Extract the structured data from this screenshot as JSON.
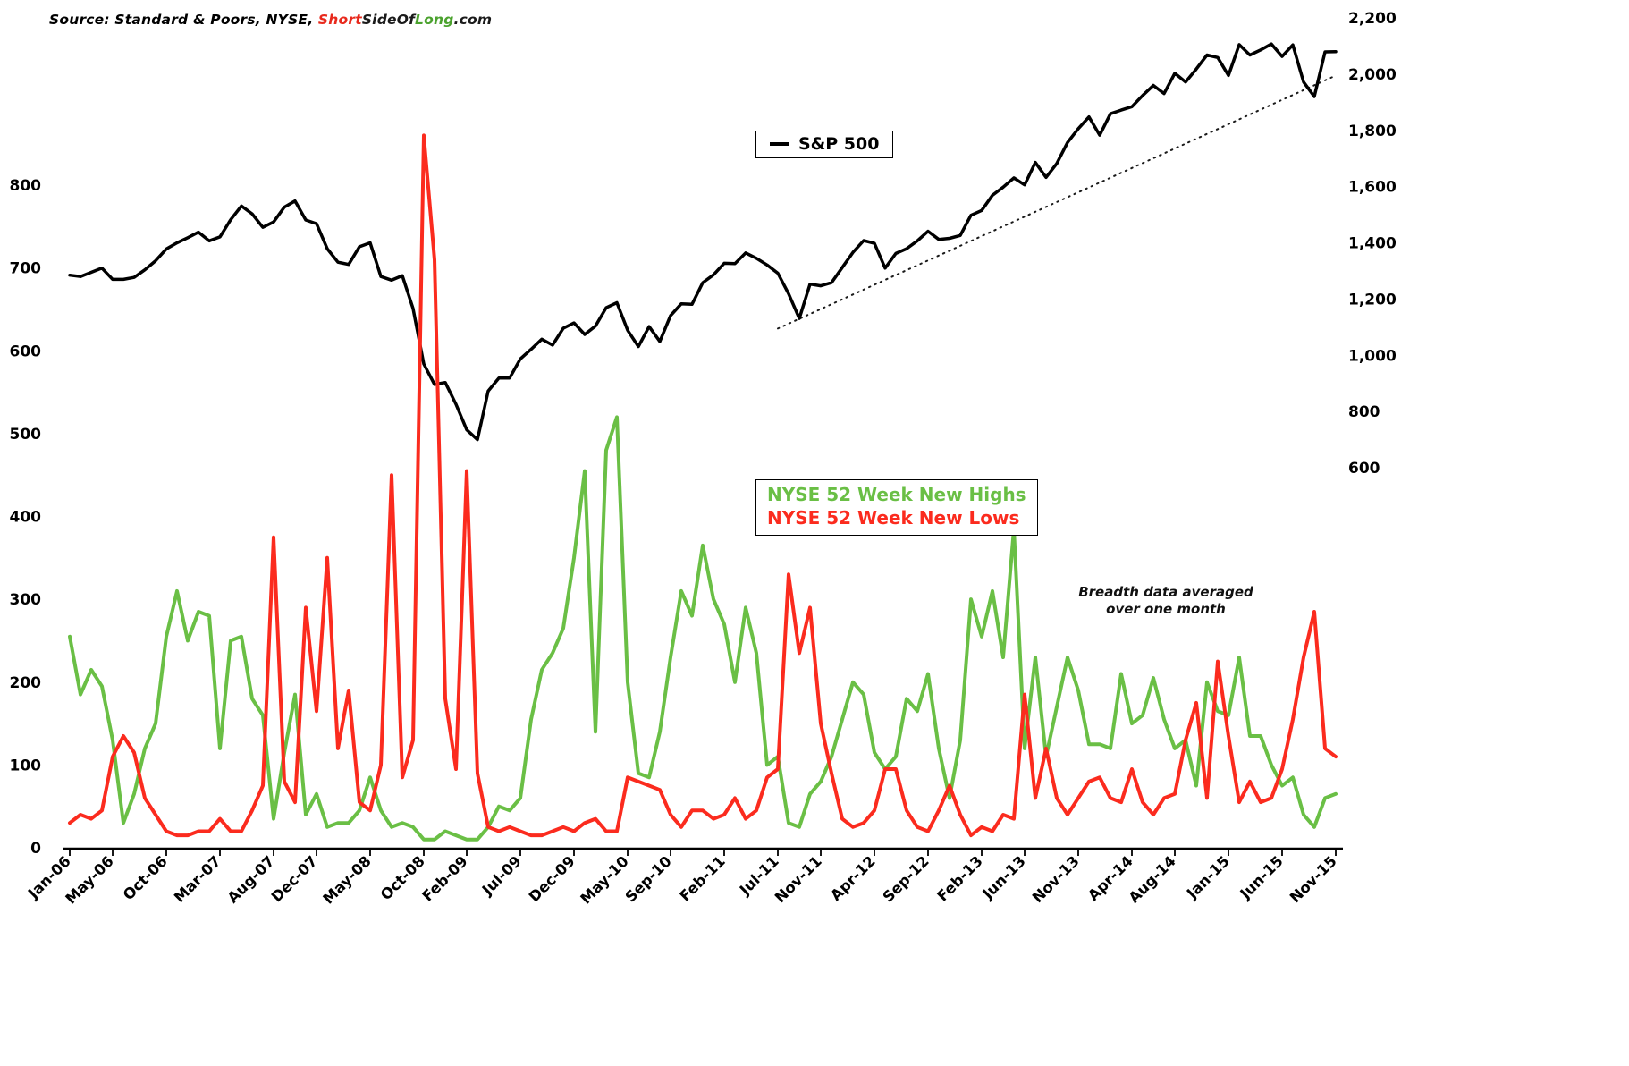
{
  "source": {
    "parts": [
      {
        "text": "Source: Standard & Poors, NYSE, ",
        "color": "#000000"
      },
      {
        "text": "Short",
        "color": "#e8291c"
      },
      {
        "text": "SideOf",
        "color": "#1a1a1a"
      },
      {
        "text": "Long",
        "color": "#4ba22e"
      },
      {
        "text": ".com",
        "color": "#1a1a1a"
      }
    ]
  },
  "annotation": {
    "text": "Breadth data averaged over one month"
  },
  "chart_data": {
    "type": "line",
    "title": "",
    "grid": false,
    "legend_position": "inside",
    "background": "#ffffff",
    "categories": [
      "Jan-06",
      "Feb-06",
      "Mar-06",
      "Apr-06",
      "May-06",
      "Jun-06",
      "Jul-06",
      "Aug-06",
      "Sep-06",
      "Oct-06",
      "Nov-06",
      "Dec-06",
      "Jan-07",
      "Feb-07",
      "Mar-07",
      "Apr-07",
      "May-07",
      "Jun-07",
      "Jul-07",
      "Aug-07",
      "Sep-07",
      "Oct-07",
      "Nov-07",
      "Dec-07",
      "Jan-08",
      "Feb-08",
      "Mar-08",
      "Apr-08",
      "May-08",
      "Jun-08",
      "Jul-08",
      "Aug-08",
      "Sep-08",
      "Oct-08",
      "Nov-08",
      "Dec-08",
      "Jan-09",
      "Feb-09",
      "Mar-09",
      "Apr-09",
      "May-09",
      "Jun-09",
      "Jul-09",
      "Aug-09",
      "Sep-09",
      "Oct-09",
      "Nov-09",
      "Dec-09",
      "Jan-10",
      "Feb-10",
      "Mar-10",
      "Apr-10",
      "May-10",
      "Jun-10",
      "Jul-10",
      "Aug-10",
      "Sep-10",
      "Oct-10",
      "Nov-10",
      "Dec-10",
      "Jan-11",
      "Feb-11",
      "Mar-11",
      "Apr-11",
      "May-11",
      "Jun-11",
      "Jul-11",
      "Aug-11",
      "Sep-11",
      "Oct-11",
      "Nov-11",
      "Dec-11",
      "Jan-12",
      "Feb-12",
      "Mar-12",
      "Apr-12",
      "May-12",
      "Jun-12",
      "Jul-12",
      "Aug-12",
      "Sep-12",
      "Oct-12",
      "Nov-12",
      "Dec-12",
      "Jan-13",
      "Feb-13",
      "Mar-13",
      "Apr-13",
      "May-13",
      "Jun-13",
      "Jul-13",
      "Aug-13",
      "Sep-13",
      "Oct-13",
      "Nov-13",
      "Dec-13",
      "Jan-14",
      "Feb-14",
      "Mar-14",
      "Apr-14",
      "May-14",
      "Jun-14",
      "Jul-14",
      "Aug-14",
      "Sep-14",
      "Oct-14",
      "Nov-14",
      "Dec-14",
      "Jan-15",
      "Feb-15",
      "Mar-15",
      "Apr-15",
      "May-15",
      "Jun-15",
      "Jul-15",
      "Aug-15",
      "Sep-15",
      "Oct-15",
      "Nov-15"
    ],
    "series": [
      {
        "name": "S&P 500",
        "axis": "right",
        "color": "#000000",
        "values": [
          1285,
          1280,
          1295,
          1310,
          1270,
          1270,
          1277,
          1304,
          1336,
          1378,
          1400,
          1418,
          1438,
          1407,
          1421,
          1482,
          1531,
          1503,
          1455,
          1474,
          1527,
          1549,
          1481,
          1468,
          1379,
          1331,
          1323,
          1386,
          1400,
          1280,
          1267,
          1283,
          1166,
          969,
          896,
          903,
          826,
          735,
          700,
          873,
          919,
          919,
          987,
          1021,
          1057,
          1036,
          1096,
          1115,
          1074,
          1104,
          1169,
          1187,
          1089,
          1031,
          1102,
          1049,
          1141,
          1183,
          1181,
          1258,
          1286,
          1327,
          1326,
          1364,
          1345,
          1321,
          1292,
          1219,
          1131,
          1253,
          1247,
          1258,
          1312,
          1366,
          1408,
          1398,
          1310,
          1362,
          1379,
          1407,
          1441,
          1412,
          1416,
          1426,
          1498,
          1515,
          1569,
          1598,
          1631,
          1606,
          1686,
          1633,
          1682,
          1757,
          1806,
          1848,
          1783,
          1859,
          1872,
          1884,
          1924,
          1960,
          1931,
          2003,
          1972,
          2018,
          2068,
          2059,
          1995,
          2105,
          2068,
          2086,
          2107,
          2063,
          2104,
          1972,
          1920,
          2079,
          2080
        ]
      },
      {
        "name": "NYSE 52 Week New Highs",
        "axis": "left",
        "color": "#6abf45",
        "values": [
          255,
          185,
          215,
          195,
          130,
          30,
          65,
          120,
          150,
          255,
          310,
          250,
          285,
          280,
          120,
          250,
          255,
          180,
          160,
          35,
          115,
          185,
          40,
          65,
          25,
          30,
          30,
          45,
          85,
          45,
          25,
          30,
          25,
          10,
          10,
          20,
          15,
          10,
          10,
          25,
          50,
          45,
          60,
          155,
          215,
          235,
          265,
          350,
          455,
          140,
          480,
          520,
          200,
          90,
          85,
          140,
          230,
          310,
          280,
          365,
          300,
          270,
          200,
          290,
          235,
          100,
          110,
          30,
          25,
          65,
          80,
          110,
          155,
          200,
          185,
          115,
          95,
          110,
          180,
          165,
          210,
          120,
          60,
          130,
          300,
          255,
          310,
          230,
          385,
          120,
          230,
          110,
          170,
          230,
          190,
          125,
          125,
          120,
          210,
          150,
          160,
          205,
          155,
          120,
          130,
          75,
          200,
          165,
          160,
          230,
          135,
          135,
          100,
          75,
          85,
          40,
          25,
          60,
          65
        ]
      },
      {
        "name": "NYSE 52 Week New Lows",
        "axis": "left",
        "color": "#fb2b1e",
        "values": [
          30,
          40,
          35,
          45,
          110,
          135,
          115,
          60,
          40,
          20,
          15,
          15,
          20,
          20,
          35,
          20,
          20,
          45,
          75,
          375,
          80,
          55,
          290,
          165,
          350,
          120,
          190,
          55,
          45,
          100,
          450,
          85,
          130,
          860,
          710,
          180,
          95,
          455,
          90,
          25,
          20,
          25,
          20,
          15,
          15,
          20,
          25,
          20,
          30,
          35,
          20,
          20,
          85,
          80,
          75,
          70,
          40,
          25,
          45,
          45,
          35,
          40,
          60,
          35,
          45,
          85,
          95,
          330,
          235,
          290,
          150,
          90,
          35,
          25,
          30,
          45,
          95,
          95,
          45,
          25,
          20,
          45,
          75,
          40,
          15,
          25,
          20,
          40,
          35,
          185,
          60,
          120,
          60,
          40,
          60,
          80,
          85,
          60,
          55,
          95,
          55,
          40,
          60,
          65,
          130,
          175,
          60,
          225,
          135,
          55,
          80,
          55,
          60,
          95,
          155,
          230,
          285,
          120,
          110
        ]
      }
    ],
    "left_axis": {
      "title": "",
      "min": 0,
      "max": 800,
      "ticks": [
        0,
        100,
        200,
        300,
        400,
        500,
        600,
        700,
        800
      ]
    },
    "right_axis": {
      "title": "",
      "min": 600,
      "max": 2200,
      "ticks": [
        600,
        800,
        1000,
        1200,
        1400,
        1600,
        1800,
        2000,
        2200
      ],
      "tick_labels": [
        "600",
        "800",
        "1,000",
        "1,200",
        "1,400",
        "1,600",
        "1,800",
        "2,000",
        "2,200"
      ]
    },
    "x_axis": {
      "tick_indices": [
        0,
        4,
        9,
        14,
        19,
        23,
        28,
        33,
        37,
        42,
        47,
        52,
        56,
        61,
        66,
        70,
        75,
        80,
        85,
        89,
        94,
        99,
        103,
        108,
        113,
        118
      ],
      "tick_labels": [
        "Jan-06",
        "May-06",
        "Oct-06",
        "Mar-07",
        "Aug-07",
        "Dec-07",
        "May-08",
        "Oct-08",
        "Feb-09",
        "Jul-09",
        "Dec-09",
        "May-10",
        "Sep-10",
        "Feb-11",
        "Jul-11",
        "Nov-11",
        "Apr-12",
        "Sep-12",
        "Feb-13",
        "Jun-13",
        "Nov-13",
        "Apr-14",
        "Aug-14",
        "Jan-15",
        "Jun-15",
        "Nov-15"
      ]
    },
    "trendline": {
      "style": "dotted",
      "color": "#1a1a1a",
      "start_index": 66,
      "start_value": 1095,
      "end_index": 118,
      "end_value": 1995
    }
  }
}
